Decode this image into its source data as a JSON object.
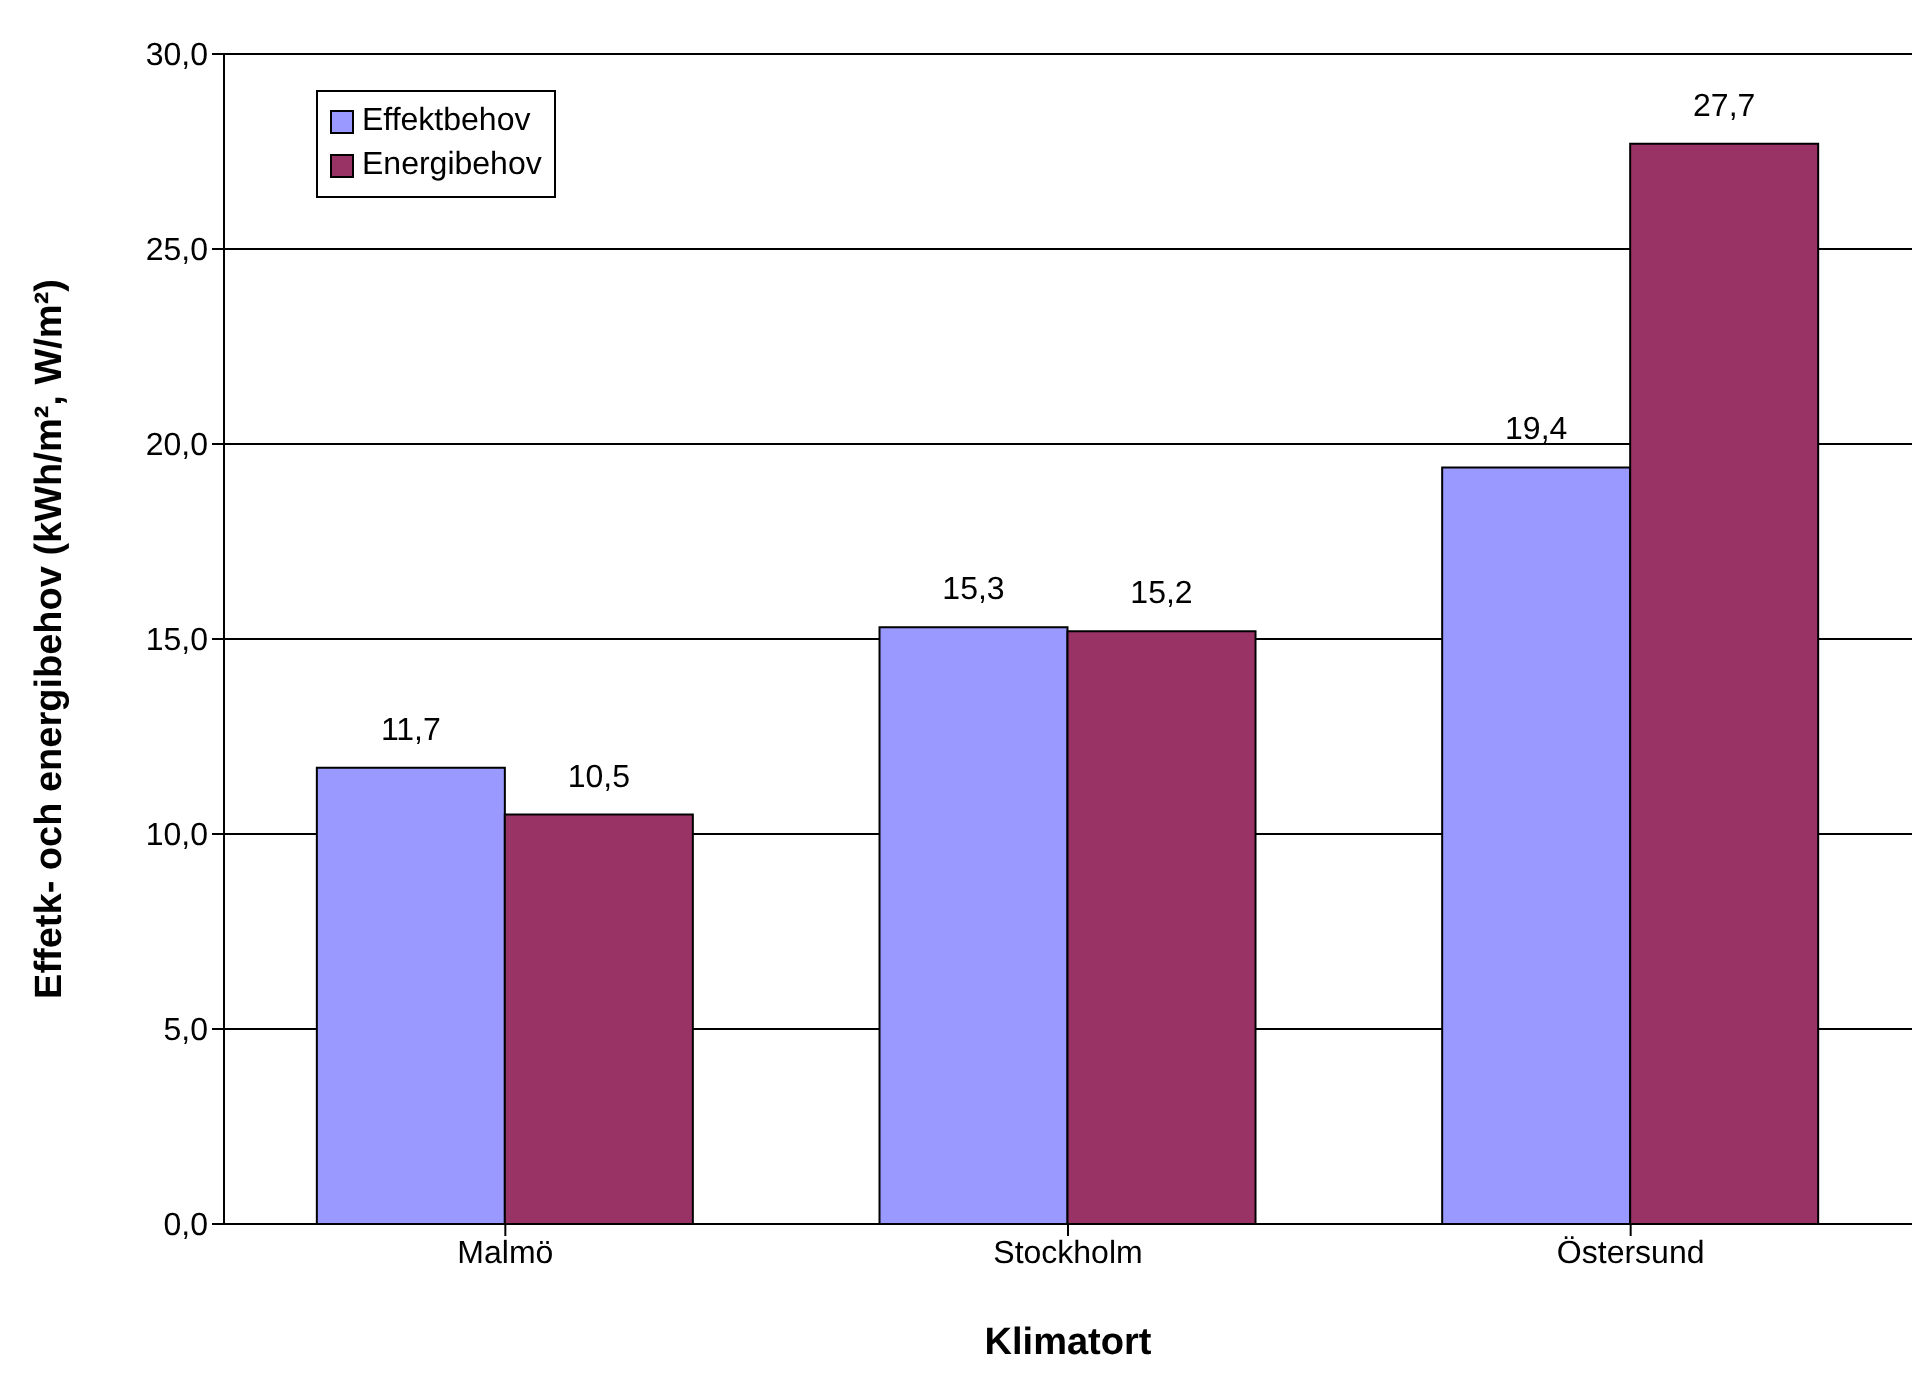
{
  "chart_data": {
    "type": "bar",
    "xlabel": "Klimatort",
    "ylabel": "Effetk- och energibehov (kWh/m², W/m²)",
    "categories": [
      "Malmö",
      "Stockholm",
      "Östersund"
    ],
    "series": [
      {
        "name": "Effektbehov",
        "color": "#9999ff",
        "values": [
          11.7,
          15.3,
          19.4
        ],
        "value_labels": [
          "11,7",
          "15,3",
          "19,4"
        ]
      },
      {
        "name": "Energibehov",
        "color": "#993366",
        "values": [
          10.5,
          15.2,
          27.7
        ],
        "value_labels": [
          "10,5",
          "15,2",
          "27,7"
        ]
      }
    ],
    "ylim": [
      0,
      30
    ],
    "yticks": [
      {
        "value": 0,
        "label": "0,0"
      },
      {
        "value": 5,
        "label": "5,0"
      },
      {
        "value": 10,
        "label": "10,0"
      },
      {
        "value": 15,
        "label": "15,0"
      },
      {
        "value": 20,
        "label": "20,0"
      },
      {
        "value": 25,
        "label": "25,0"
      },
      {
        "value": 30,
        "label": "30,0"
      }
    ],
    "grid": "y",
    "legend": "top left"
  }
}
